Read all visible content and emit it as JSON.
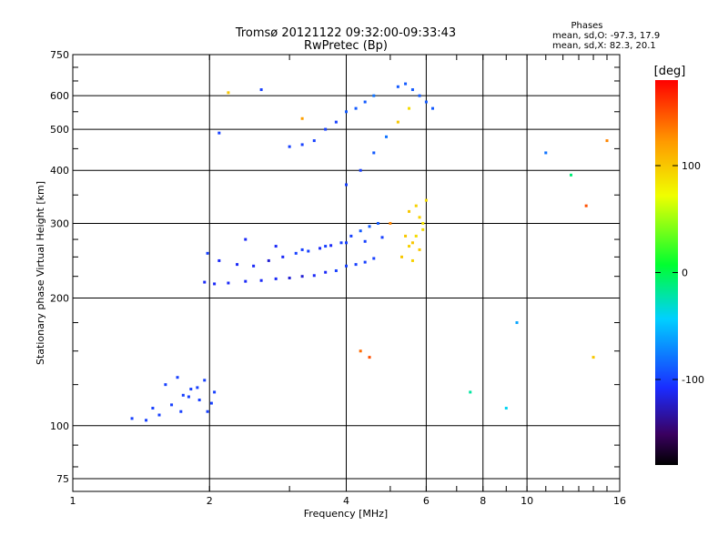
{
  "chart_data": {
    "type": "scatter",
    "title": "Tromsø 20121122 09:32:00-09:33:43",
    "subtitle": "RwPretec (Bp)",
    "xlabel": "Frequency [MHz]",
    "ylabel": "Stationary phase Virtual Height [km]",
    "x_scale": "log",
    "y_scale": "log",
    "xlim": [
      1,
      16
    ],
    "ylim": [
      70,
      750
    ],
    "x_ticks": [
      1,
      2,
      4,
      6,
      8,
      10,
      16
    ],
    "y_ticks": [
      75,
      100,
      200,
      300,
      400,
      500,
      600,
      750
    ],
    "grid": true,
    "info_box": {
      "title": "Phases",
      "line1": "mean, sd,O: -97.3, 17.9",
      "line2": "mean, sd,X:  82.3, 20.1"
    },
    "colorbar": {
      "label": "[deg]",
      "range": [
        -180,
        180
      ],
      "ticks": [
        100,
        0,
        -100
      ],
      "colormap": "rainbow"
    },
    "series": [
      {
        "x": [
          1.35,
          1.45,
          1.55,
          1.65,
          1.75,
          1.82,
          1.9,
          1.98,
          2.05,
          1.5,
          1.6,
          1.7,
          1.8,
          1.95,
          2.02,
          1.88,
          1.73,
          1.95,
          2.05,
          2.2,
          2.4,
          2.6,
          2.8,
          3.0,
          3.2,
          3.4,
          3.6,
          3.8,
          4.0,
          4.2,
          4.4,
          4.6,
          1.98,
          2.1,
          2.3,
          2.5,
          2.7,
          2.9,
          3.1,
          3.3,
          3.5,
          3.7,
          3.9,
          4.1,
          4.3,
          4.5,
          4.7,
          2.4,
          2.8,
          3.2,
          3.6,
          4.0,
          4.4,
          4.8,
          3.0,
          3.2,
          3.4,
          3.6,
          3.8,
          4.0,
          4.2,
          4.4,
          4.6,
          4.0,
          4.3,
          4.6,
          4.9,
          5.2,
          5.5,
          5.2,
          5.4,
          5.6,
          5.8,
          6.0,
          6.2,
          5.3,
          5.5,
          5.7,
          5.9,
          5.5,
          5.7,
          5.9,
          5.6,
          5.8,
          6.0,
          5.4,
          5.6,
          5.8,
          2.1,
          2.2,
          2.6,
          3.2,
          5.0,
          4.3,
          4.5,
          7.5,
          9.0,
          9.5,
          11.0,
          14.0,
          15.0,
          12.5,
          13.5
        ],
        "y": [
          104,
          103,
          106,
          112,
          118,
          122,
          115,
          108,
          120,
          110,
          125,
          130,
          117,
          128,
          113,
          123,
          108,
          218,
          216,
          217,
          219,
          220,
          222,
          223,
          225,
          226,
          230,
          232,
          238,
          240,
          243,
          248,
          255,
          245,
          240,
          238,
          245,
          250,
          255,
          258,
          262,
          266,
          270,
          280,
          288,
          295,
          300,
          275,
          265,
          260,
          265,
          270,
          272,
          278,
          455,
          460,
          470,
          500,
          520,
          550,
          560,
          580,
          600,
          370,
          400,
          440,
          480,
          520,
          560,
          630,
          640,
          620,
          600,
          580,
          560,
          250,
          265,
          280,
          300,
          320,
          330,
          290,
          270,
          310,
          340,
          280,
          245,
          260,
          490,
          610,
          620,
          530,
          300,
          150,
          145,
          120,
          110,
          175,
          440,
          145,
          470,
          390,
          330
        ],
        "phase": [
          -100,
          -100,
          -100,
          -100,
          -100,
          -100,
          -100,
          -100,
          -100,
          -100,
          -100,
          -100,
          -100,
          -100,
          -100,
          -100,
          -100,
          -110,
          -110,
          -110,
          -110,
          -110,
          -110,
          -120,
          -120,
          -110,
          -110,
          -100,
          -100,
          -100,
          -100,
          -100,
          -100,
          -110,
          -110,
          -110,
          -120,
          -110,
          -100,
          -100,
          -110,
          -110,
          -100,
          -100,
          -90,
          -90,
          -90,
          -110,
          -110,
          -100,
          -100,
          -100,
          -100,
          -100,
          -100,
          -100,
          -100,
          -100,
          -100,
          -90,
          -90,
          -90,
          -80,
          -100,
          -100,
          -90,
          -80,
          100,
          90,
          -90,
          -90,
          -90,
          -90,
          -90,
          -90,
          100,
          95,
          90,
          85,
          100,
          95,
          90,
          100,
          95,
          90,
          100,
          95,
          100,
          -100,
          100,
          -100,
          120,
          130,
          140,
          150,
          -20,
          -40,
          -60,
          -80,
          100,
          130,
          -10,
          150
        ]
      }
    ]
  }
}
